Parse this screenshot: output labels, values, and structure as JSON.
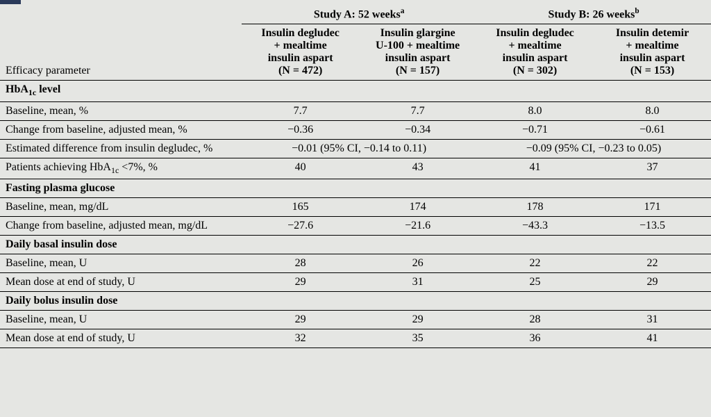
{
  "table": {
    "background_color": "#e5e6e3",
    "border_color": "#000000",
    "font_family": "Georgia, serif",
    "font_size_pt": 12,
    "header": {
      "efficacy_label": "Efficacy parameter",
      "study_a": {
        "title_html": "Study A: 52 weeks<sup>a</sup>",
        "col1_html": "Insulin degludec<br>+ mealtime<br>insulin aspart<br>(N = 472)",
        "col2_html": "Insulin glargine<br>U-100 + mealtime<br>insulin aspart<br>(N = 157)"
      },
      "study_b": {
        "title_html": "Study B: 26 weeks<sup>b</sup>",
        "col1_html": "Insulin degludec<br>+ mealtime<br>insulin aspart<br>(N = 302)",
        "col2_html": "Insulin detemir<br>+ mealtime<br>insulin aspart<br>(N = 153)"
      }
    },
    "sections": [
      {
        "title_html": "HbA<span class=\"sub\">1c</span> level",
        "rows": [
          {
            "label": "Baseline, mean, %",
            "a1": "7.7",
            "a2": "7.7",
            "b1": "8.0",
            "b2": "8.0"
          },
          {
            "label": "Change from baseline, adjusted mean, %",
            "a1": "−0.36",
            "a2": "−0.34",
            "b1": "−0.71",
            "b2": "−0.61"
          },
          {
            "label": "Estimated difference from insulin degludec, %",
            "span_a": "−0.01 (95% CI, −0.14 to 0.11)",
            "span_b": "−0.09 (95% CI, −0.23 to 0.05)"
          },
          {
            "label_html": "Patients achieving HbA<span class=\"sub\">1c</span> &lt;7%, %",
            "a1": "40",
            "a2": "43",
            "b1": "41",
            "b2": "37"
          }
        ]
      },
      {
        "title": "Fasting plasma glucose",
        "rows": [
          {
            "label": "Baseline, mean, mg/dL",
            "a1": "165",
            "a2": "174",
            "b1": "178",
            "b2": "171"
          },
          {
            "label": "Change from baseline, adjusted mean, mg/dL",
            "a1": "−27.6",
            "a2": "−21.6",
            "b1": "−43.3",
            "b2": "−13.5"
          }
        ]
      },
      {
        "title": "Daily basal insulin dose",
        "rows": [
          {
            "label": "Baseline, mean, U",
            "a1": "28",
            "a2": "26",
            "b1": "22",
            "b2": "22"
          },
          {
            "label": "Mean dose at end of study, U",
            "a1": "29",
            "a2": "31",
            "b1": "25",
            "b2": "29"
          }
        ]
      },
      {
        "title": "Daily bolus insulin dose",
        "rows": [
          {
            "label": "Baseline, mean, U",
            "a1": "29",
            "a2": "29",
            "b1": "28",
            "b2": "31"
          },
          {
            "label": "Mean dose at end of study, U",
            "a1": "32",
            "a2": "35",
            "b1": "36",
            "b2": "41"
          }
        ]
      }
    ]
  }
}
